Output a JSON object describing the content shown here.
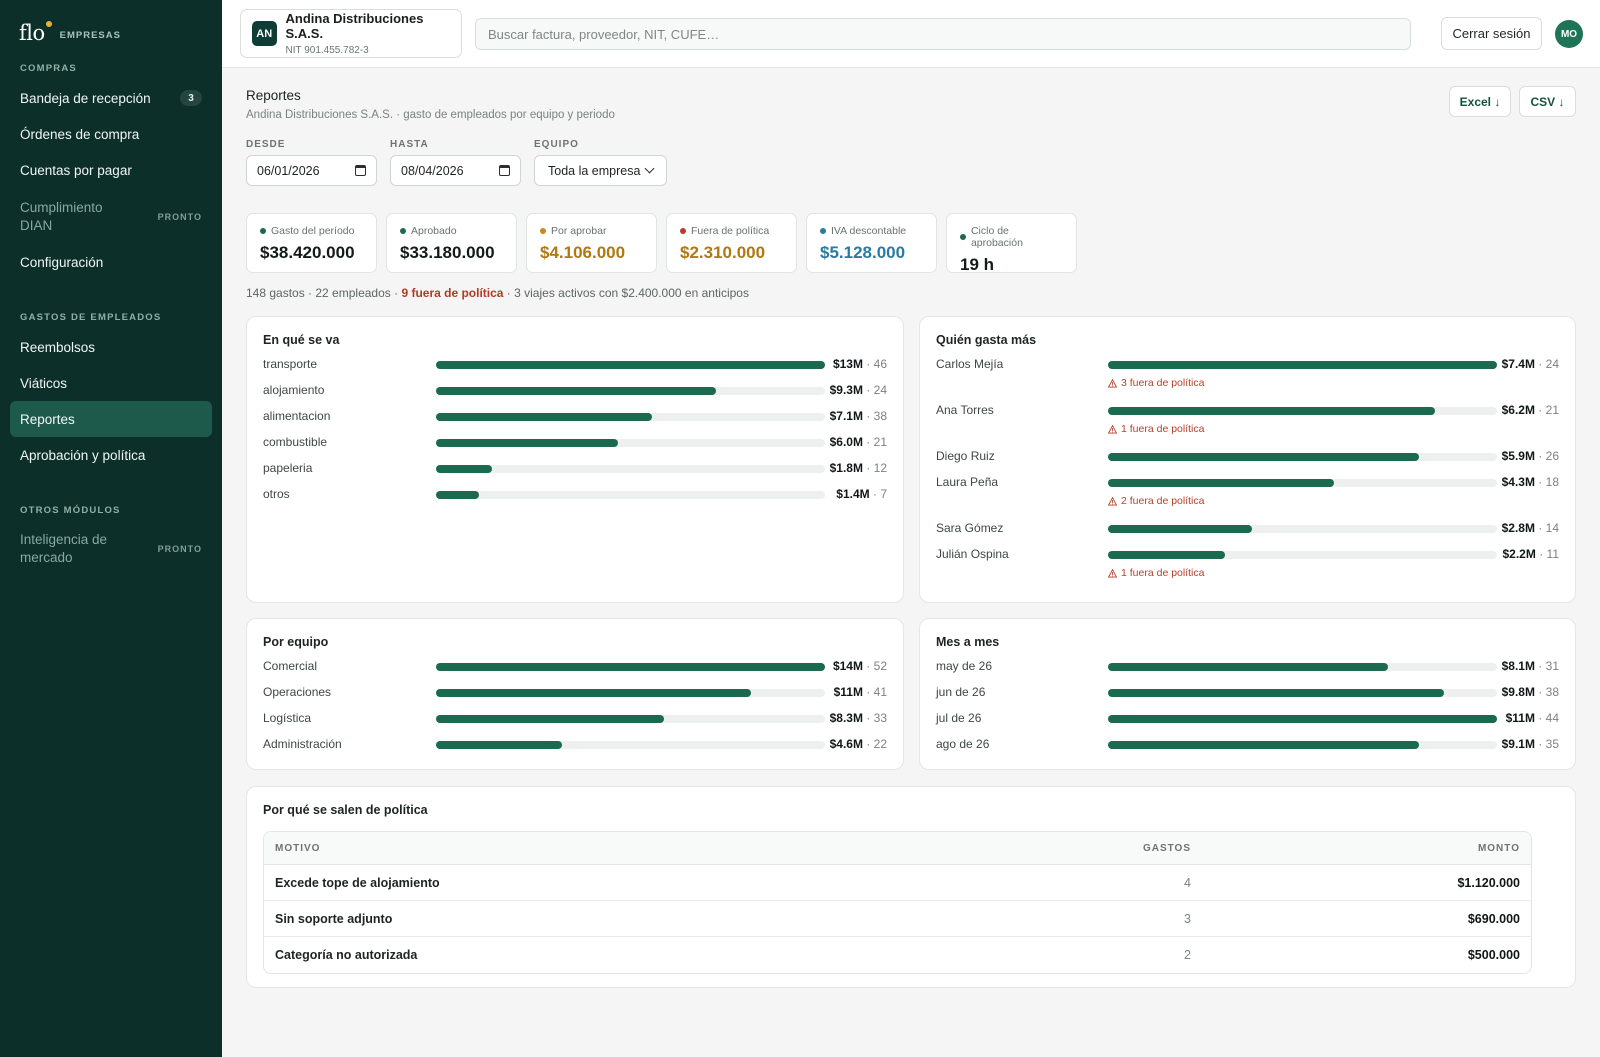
{
  "brand": {
    "logo": "flo",
    "sub": "EMPRESAS"
  },
  "sidebar": {
    "sections": [
      {
        "title": "COMPRAS"
      },
      {
        "title": "GASTOS DE EMPLEADOS"
      },
      {
        "title": "OTROS MÓDULOS"
      }
    ],
    "items": [
      {
        "label": "Bandeja de recepción",
        "badge": "3"
      },
      {
        "label": "Órdenes de compra"
      },
      {
        "label": "Cuentas por pagar"
      },
      {
        "label": "Cumplimiento DIAN",
        "soon": "PRONTO"
      },
      {
        "label": "Configuración"
      },
      {
        "label": "Reembolsos"
      },
      {
        "label": "Viáticos"
      },
      {
        "label": "Reportes"
      },
      {
        "label": "Aprobación y política"
      },
      {
        "label": "Inteligencia de mercado",
        "soon": "PRONTO"
      }
    ]
  },
  "topbar": {
    "company_initials": "AN",
    "company_name": "Andina Distribuciones S.A.S.",
    "company_nit": "NIT 901.455.782-3",
    "search_placeholder": "Buscar factura, proveedor, NIT, CUFE…",
    "logout_label": "Cerrar sesión",
    "user_initials": "MO"
  },
  "page": {
    "title": "Reportes",
    "subtitle": "Andina Distribuciones S.A.S. · gasto de empleados por equipo y periodo",
    "export_excel": "Excel ↓",
    "export_csv": "CSV ↓"
  },
  "filters": {
    "from_label": "DESDE",
    "from_value": "06/01/2026",
    "to_label": "HASTA",
    "to_value": "08/04/2026",
    "team_label": "EQUIPO",
    "team_value": "Toda la empresa"
  },
  "kpis": [
    {
      "label": "Gasto del período",
      "value": "$38.420.000",
      "color": "#1b6a4f",
      "value_color": "#14191a"
    },
    {
      "label": "Aprobado",
      "value": "$33.180.000",
      "color": "#1b6a4f",
      "value_color": "#14191a"
    },
    {
      "label": "Por aprobar",
      "value": "$4.106.000",
      "color": "#c98a1b",
      "value_color": "#b07810"
    },
    {
      "label": "Fuera de política",
      "value": "$2.310.000",
      "color": "#c0392b",
      "value_color": "#b07810"
    },
    {
      "label": "IVA descontable",
      "value": "$5.128.000",
      "color": "#2a7aa3",
      "value_color": "#2a7aa3"
    },
    {
      "label": "Ciclo de aprobación",
      "value": "19 h",
      "color": "#1b6a4f",
      "value_color": "#14191a"
    }
  ],
  "summary": {
    "part1": "148 gastos · 22 empleados · ",
    "warn": "9 fuera de política",
    "part2": " · 3 viajes activos con $2.400.000 en anticipos"
  },
  "charts": {
    "categories": {
      "title": "En qué se va",
      "rows": [
        {
          "label": "transporte",
          "amount": "$13M",
          "count": "46",
          "fill": 1.0
        },
        {
          "label": "alojamiento",
          "amount": "$9.3M",
          "count": "24",
          "fill": 0.72
        },
        {
          "label": "alimentacion",
          "amount": "$7.1M",
          "count": "38",
          "fill": 0.555
        },
        {
          "label": "combustible",
          "amount": "$6.0M",
          "count": "21",
          "fill": 0.468
        },
        {
          "label": "papeleria",
          "amount": "$1.8M",
          "count": "12",
          "fill": 0.145
        },
        {
          "label": "otros",
          "amount": "$1.4M",
          "count": "7",
          "fill": 0.11
        }
      ]
    },
    "spenders": {
      "title": "Quién gasta más",
      "rows": [
        {
          "label": "Carlos Mejía",
          "amount": "$7.4M",
          "count": "24",
          "fill": 1.0,
          "warn": "3 fuera de política"
        },
        {
          "label": "Ana Torres",
          "amount": "$6.2M",
          "count": "21",
          "fill": 0.84,
          "warn": "1 fuera de política"
        },
        {
          "label": "Diego Ruiz",
          "amount": "$5.9M",
          "count": "26",
          "fill": 0.8
        },
        {
          "label": "Laura Peña",
          "amount": "$4.3M",
          "count": "18",
          "fill": 0.58,
          "warn": "2 fuera de política"
        },
        {
          "label": "Sara Gómez",
          "amount": "$2.8M",
          "count": "14",
          "fill": 0.37
        },
        {
          "label": "Julián Ospina",
          "amount": "$2.2M",
          "count": "11",
          "fill": 0.3,
          "warn": "1 fuera de política"
        }
      ]
    },
    "teams": {
      "title": "Por equipo",
      "rows": [
        {
          "label": "Comercial",
          "amount": "$14M",
          "count": "52",
          "fill": 1.0
        },
        {
          "label": "Operaciones",
          "amount": "$11M",
          "count": "41",
          "fill": 0.81
        },
        {
          "label": "Logística",
          "amount": "$8.3M",
          "count": "33",
          "fill": 0.585
        },
        {
          "label": "Administración",
          "amount": "$4.6M",
          "count": "22",
          "fill": 0.325
        }
      ]
    },
    "months": {
      "title": "Mes a mes",
      "rows": [
        {
          "label": "may de 26",
          "amount": "$8.1M",
          "count": "31",
          "fill": 0.72
        },
        {
          "label": "jun de 26",
          "amount": "$9.8M",
          "count": "38",
          "fill": 0.865
        },
        {
          "label": "jul de 26",
          "amount": "$11M",
          "count": "44",
          "fill": 1.0
        },
        {
          "label": "ago de 26",
          "amount": "$9.1M",
          "count": "35",
          "fill": 0.8
        }
      ]
    }
  },
  "policy_table": {
    "title": "Por qué se salen de política",
    "headers": {
      "reason": "MOTIVO",
      "count": "GASTOS",
      "amount": "MONTO"
    },
    "rows": [
      {
        "reason": "Excede tope de alojamiento",
        "count": "4",
        "amount": "$1.120.000"
      },
      {
        "reason": "Sin soporte adjunto",
        "count": "3",
        "amount": "$690.000"
      },
      {
        "reason": "Categoría no autorizada",
        "count": "2",
        "amount": "$500.000"
      }
    ]
  }
}
